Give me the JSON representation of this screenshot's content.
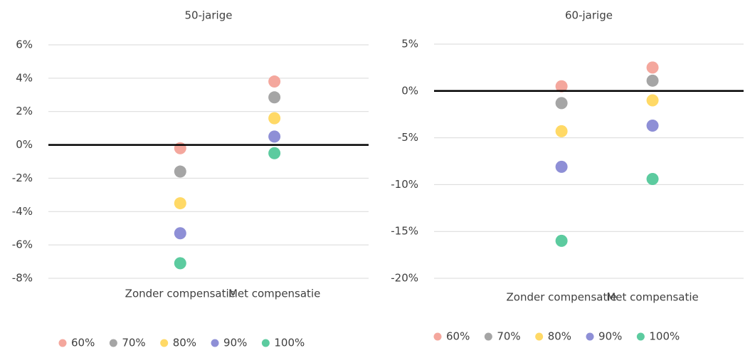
{
  "chart_data": [
    {
      "type": "dot",
      "title": "50-jarige",
      "categories": [
        "Zonder compensatie",
        "Met compensatie"
      ],
      "series": [
        {
          "name": "60%",
          "color": "#f4a79d",
          "values": [
            -0.2,
            3.8
          ]
        },
        {
          "name": "70%",
          "color": "#a5a5a5",
          "values": [
            -1.6,
            2.85
          ]
        },
        {
          "name": "80%",
          "color": "#ffd966",
          "values": [
            -3.5,
            1.6
          ]
        },
        {
          "name": "90%",
          "color": "#8e8fd6",
          "values": [
            -5.3,
            0.5
          ]
        },
        {
          "name": "100%",
          "color": "#5ccb9f",
          "values": [
            -7.1,
            -0.5
          ]
        }
      ],
      "ylim": [
        -8,
        6
      ],
      "yticks": [
        {
          "value": -8,
          "label": "-8%"
        },
        {
          "value": -6,
          "label": "-6%"
        },
        {
          "value": -4,
          "label": "-4%"
        },
        {
          "value": -2,
          "label": "-2%"
        },
        {
          "value": 0,
          "label": "0%"
        },
        {
          "value": 2,
          "label": "2%"
        },
        {
          "value": 4,
          "label": "4%"
        },
        {
          "value": 6,
          "label": "6%"
        }
      ],
      "grid": true,
      "legend": "bottom"
    },
    {
      "type": "dot",
      "title": "60-jarige",
      "categories": [
        "Zonder compensatie",
        "Met compensatie"
      ],
      "series": [
        {
          "name": "60%",
          "color": "#f4a79d",
          "values": [
            0.5,
            2.5
          ]
        },
        {
          "name": "70%",
          "color": "#a5a5a5",
          "values": [
            -1.3,
            1.1
          ]
        },
        {
          "name": "80%",
          "color": "#ffd966",
          "values": [
            -4.3,
            -1.0
          ]
        },
        {
          "name": "90%",
          "color": "#8e8fd6",
          "values": [
            -8.1,
            -3.7
          ]
        },
        {
          "name": "100%",
          "color": "#5ccb9f",
          "values": [
            -16.0,
            -9.4
          ]
        }
      ],
      "ylim": [
        -20,
        5
      ],
      "yticks": [
        {
          "value": -20,
          "label": "-20%"
        },
        {
          "value": -15,
          "label": "-15%"
        },
        {
          "value": -10,
          "label": "-10%"
        },
        {
          "value": -5,
          "label": "-5%"
        },
        {
          "value": 0,
          "label": "0%"
        },
        {
          "value": 5,
          "label": "5%"
        }
      ],
      "grid": true,
      "legend": "bottom"
    }
  ]
}
